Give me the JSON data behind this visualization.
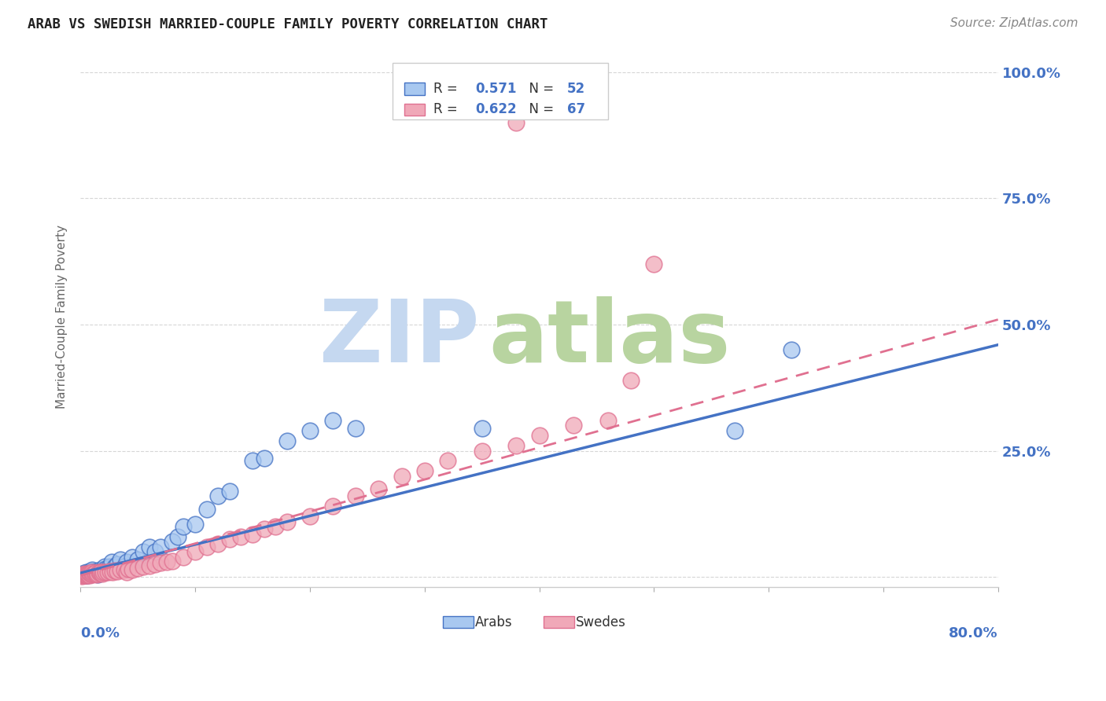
{
  "title": "ARAB VS SWEDISH MARRIED-COUPLE FAMILY POVERTY CORRELATION CHART",
  "source": "Source: ZipAtlas.com",
  "ylabel": "Married-Couple Family Poverty",
  "right_yticks": [
    0.0,
    0.25,
    0.5,
    0.75,
    1.0
  ],
  "right_yticklabels": [
    "",
    "25.0%",
    "50.0%",
    "75.0%",
    "100.0%"
  ],
  "xlim": [
    0.0,
    0.8
  ],
  "ylim": [
    -0.02,
    1.05
  ],
  "arab_R": 0.571,
  "arab_N": 52,
  "swede_R": 0.622,
  "swede_N": 67,
  "arab_color": "#a8c8f0",
  "swede_color": "#f0a8b8",
  "arab_line_color": "#4472c4",
  "swede_line_color": "#e07090",
  "legend_label_arab": "Arabs",
  "legend_label_swede": "Swedes",
  "grid_color": "#cccccc",
  "background_color": "#ffffff",
  "arab_x": [
    0.002,
    0.003,
    0.004,
    0.005,
    0.005,
    0.006,
    0.007,
    0.008,
    0.008,
    0.009,
    0.01,
    0.01,
    0.011,
    0.012,
    0.013,
    0.014,
    0.015,
    0.016,
    0.017,
    0.018,
    0.02,
    0.021,
    0.022,
    0.025,
    0.027,
    0.03,
    0.032,
    0.035,
    0.038,
    0.04,
    0.045,
    0.05,
    0.055,
    0.06,
    0.065,
    0.07,
    0.08,
    0.085,
    0.09,
    0.1,
    0.11,
    0.12,
    0.13,
    0.15,
    0.16,
    0.18,
    0.2,
    0.22,
    0.24,
    0.35,
    0.57,
    0.62
  ],
  "arab_y": [
    0.005,
    0.008,
    0.003,
    0.006,
    0.01,
    0.004,
    0.007,
    0.005,
    0.012,
    0.008,
    0.01,
    0.015,
    0.008,
    0.006,
    0.012,
    0.009,
    0.005,
    0.01,
    0.014,
    0.01,
    0.015,
    0.02,
    0.016,
    0.02,
    0.03,
    0.02,
    0.025,
    0.035,
    0.02,
    0.03,
    0.04,
    0.035,
    0.05,
    0.06,
    0.05,
    0.06,
    0.07,
    0.08,
    0.1,
    0.105,
    0.135,
    0.16,
    0.17,
    0.23,
    0.235,
    0.27,
    0.29,
    0.31,
    0.295,
    0.295,
    0.29,
    0.45
  ],
  "swede_x": [
    0.001,
    0.002,
    0.003,
    0.003,
    0.004,
    0.005,
    0.006,
    0.006,
    0.007,
    0.008,
    0.008,
    0.009,
    0.01,
    0.01,
    0.011,
    0.012,
    0.013,
    0.014,
    0.015,
    0.016,
    0.017,
    0.018,
    0.019,
    0.02,
    0.022,
    0.024,
    0.026,
    0.028,
    0.03,
    0.032,
    0.035,
    0.038,
    0.04,
    0.042,
    0.045,
    0.05,
    0.055,
    0.06,
    0.065,
    0.07,
    0.075,
    0.08,
    0.09,
    0.1,
    0.11,
    0.12,
    0.13,
    0.14,
    0.15,
    0.16,
    0.17,
    0.18,
    0.2,
    0.22,
    0.24,
    0.26,
    0.28,
    0.3,
    0.32,
    0.35,
    0.38,
    0.4,
    0.43,
    0.46,
    0.48,
    0.5,
    0.38
  ],
  "swede_y": [
    0.002,
    0.004,
    0.003,
    0.006,
    0.005,
    0.004,
    0.003,
    0.007,
    0.005,
    0.004,
    0.008,
    0.006,
    0.005,
    0.009,
    0.007,
    0.006,
    0.008,
    0.005,
    0.007,
    0.01,
    0.008,
    0.009,
    0.007,
    0.01,
    0.01,
    0.009,
    0.012,
    0.01,
    0.013,
    0.012,
    0.015,
    0.014,
    0.01,
    0.016,
    0.015,
    0.018,
    0.02,
    0.022,
    0.025,
    0.028,
    0.03,
    0.032,
    0.04,
    0.05,
    0.06,
    0.065,
    0.075,
    0.08,
    0.085,
    0.095,
    0.1,
    0.11,
    0.12,
    0.14,
    0.16,
    0.175,
    0.2,
    0.21,
    0.23,
    0.25,
    0.26,
    0.28,
    0.3,
    0.31,
    0.39,
    0.62,
    0.9
  ],
  "arab_line_x": [
    0.0,
    0.8
  ],
  "arab_line_y": [
    0.008,
    0.46
  ],
  "swede_line_x": [
    0.0,
    0.8
  ],
  "swede_line_y": [
    0.003,
    0.51
  ]
}
